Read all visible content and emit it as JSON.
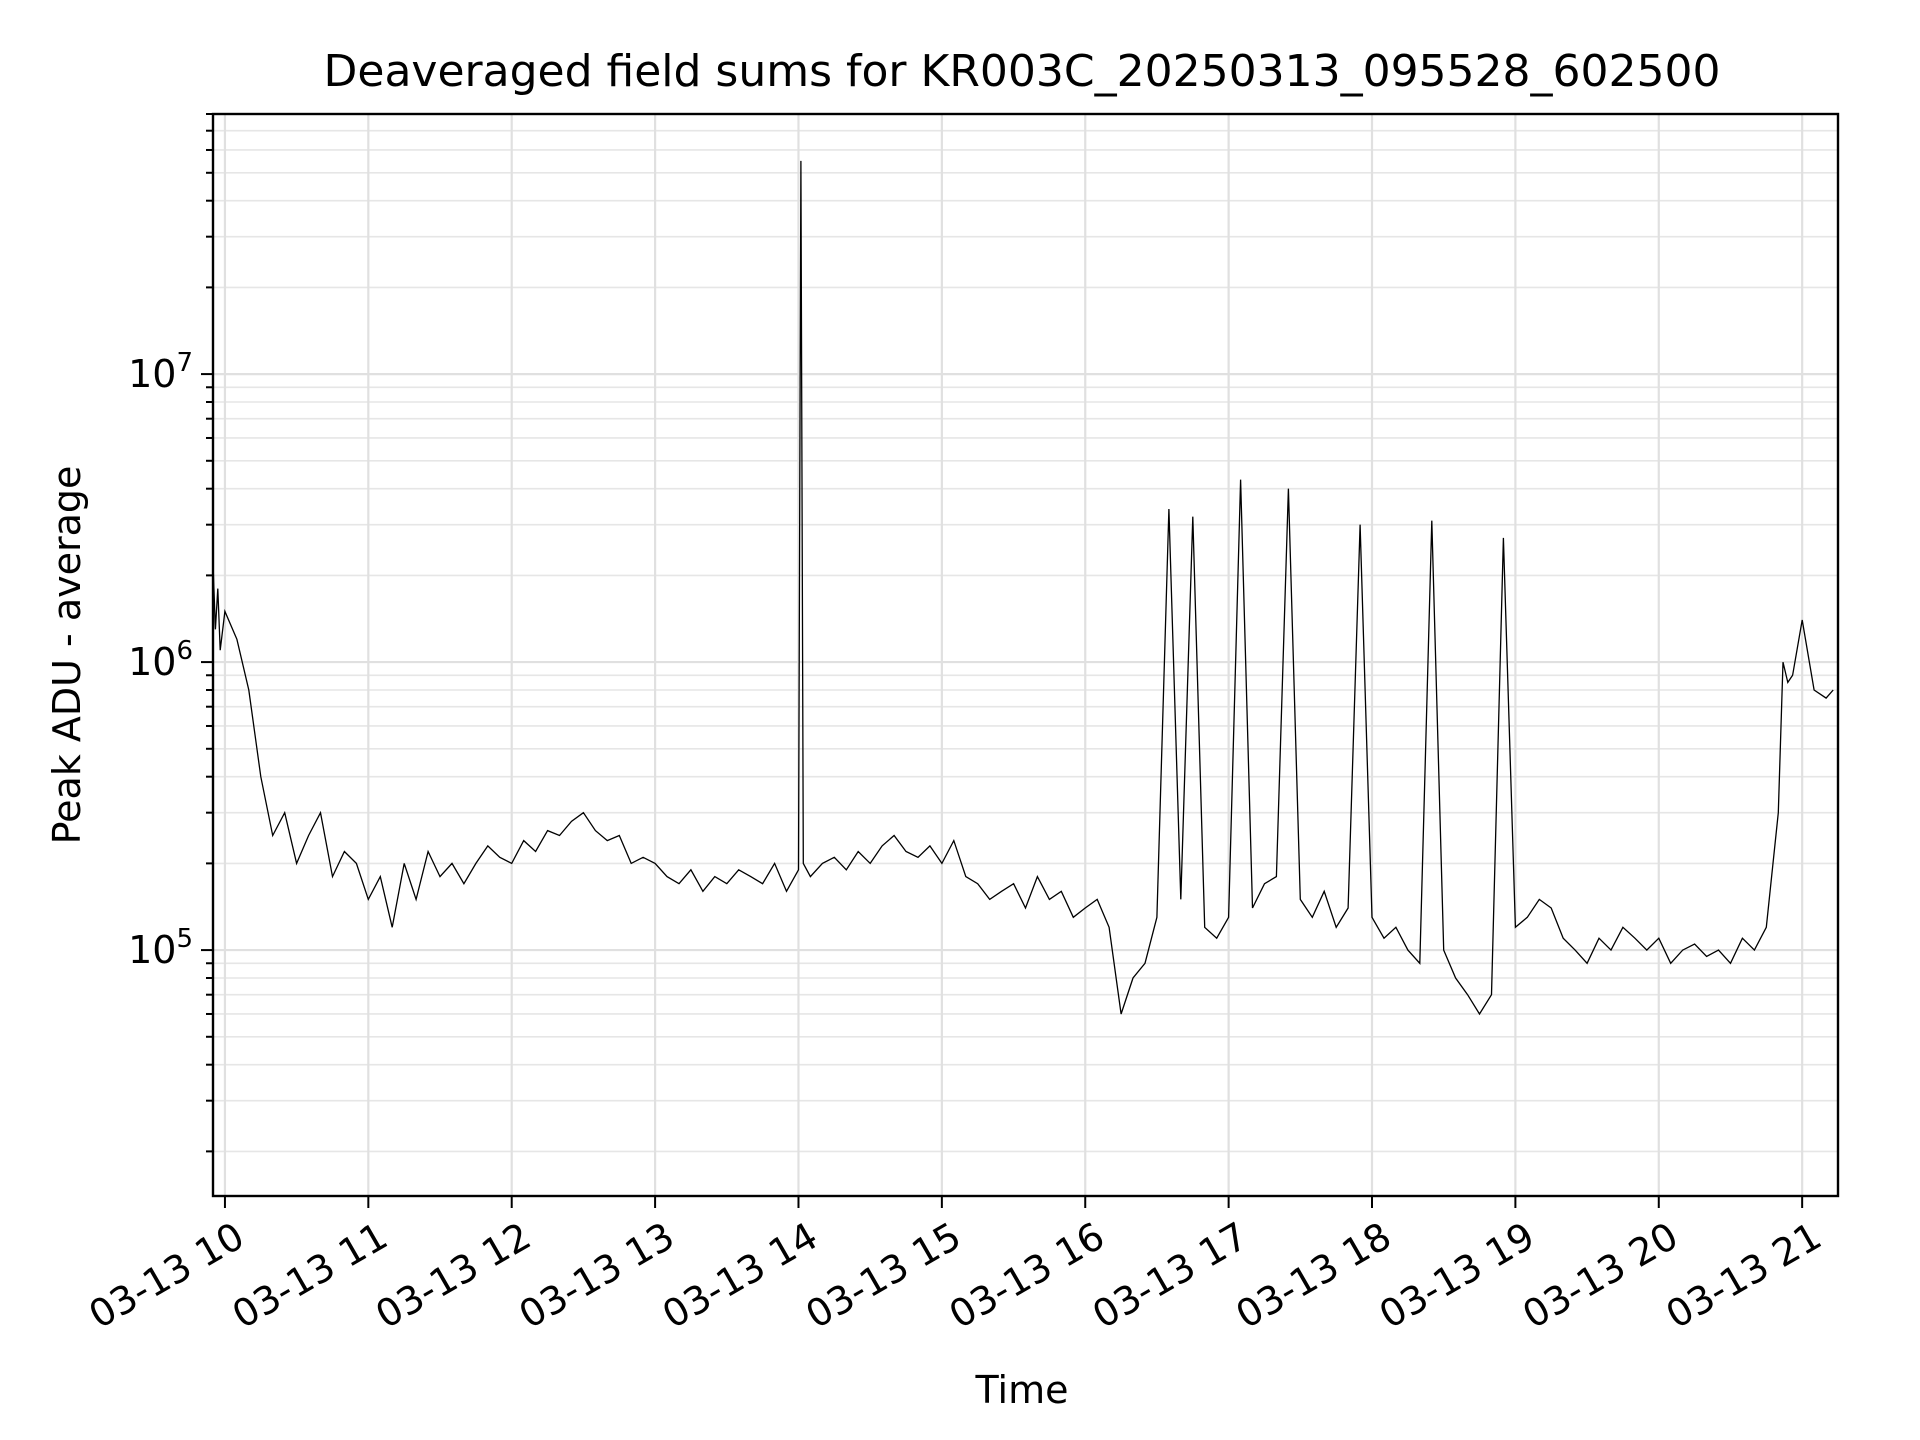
{
  "chart_data": {
    "type": "line",
    "title": "Deaveraged field sums for KR003C_20250313_095528_602500",
    "xlabel": "Time",
    "ylabel": "Peak ADU - average",
    "y_scale": "log",
    "ylim": [
      14000,
      80000000
    ],
    "xlim": [
      "2025-03-13 09:55",
      "2025-03-13 21:15"
    ],
    "x_ticks": [
      {
        "value": "2025-03-13 10:00",
        "label": "03-13 10"
      },
      {
        "value": "2025-03-13 11:00",
        "label": "03-13 11"
      },
      {
        "value": "2025-03-13 12:00",
        "label": "03-13 12"
      },
      {
        "value": "2025-03-13 13:00",
        "label": "03-13 13"
      },
      {
        "value": "2025-03-13 14:00",
        "label": "03-13 14"
      },
      {
        "value": "2025-03-13 15:00",
        "label": "03-13 15"
      },
      {
        "value": "2025-03-13 16:00",
        "label": "03-13 16"
      },
      {
        "value": "2025-03-13 17:00",
        "label": "03-13 17"
      },
      {
        "value": "2025-03-13 18:00",
        "label": "03-13 18"
      },
      {
        "value": "2025-03-13 19:00",
        "label": "03-13 19"
      },
      {
        "value": "2025-03-13 20:00",
        "label": "03-13 20"
      },
      {
        "value": "2025-03-13 21:00",
        "label": "03-13 21"
      }
    ],
    "y_ticks": [
      {
        "value": 100000,
        "base": "10",
        "exponent": "5"
      },
      {
        "value": 1000000,
        "base": "10",
        "exponent": "6"
      },
      {
        "value": 10000000,
        "base": "10",
        "exponent": "7"
      }
    ],
    "grid": true,
    "legend": "none",
    "colors": {
      "line": "#000000",
      "grid": "#e0e0e0",
      "background": "#ffffff"
    },
    "series": [
      {
        "x": [
          "2025-03-13 09:55",
          "2025-03-13 09:56",
          "2025-03-13 09:57",
          "2025-03-13 09:58",
          "2025-03-13 10:00",
          "2025-03-13 10:05",
          "2025-03-13 10:10",
          "2025-03-13 10:15",
          "2025-03-13 10:20",
          "2025-03-13 10:25",
          "2025-03-13 10:30",
          "2025-03-13 10:35",
          "2025-03-13 10:40",
          "2025-03-13 10:45",
          "2025-03-13 10:50",
          "2025-03-13 10:55",
          "2025-03-13 11:00",
          "2025-03-13 11:05",
          "2025-03-13 11:10",
          "2025-03-13 11:15",
          "2025-03-13 11:20",
          "2025-03-13 11:25",
          "2025-03-13 11:30",
          "2025-03-13 11:35",
          "2025-03-13 11:40",
          "2025-03-13 11:45",
          "2025-03-13 11:50",
          "2025-03-13 11:55",
          "2025-03-13 12:00",
          "2025-03-13 12:05",
          "2025-03-13 12:10",
          "2025-03-13 12:15",
          "2025-03-13 12:20",
          "2025-03-13 12:25",
          "2025-03-13 12:30",
          "2025-03-13 12:35",
          "2025-03-13 12:40",
          "2025-03-13 12:45",
          "2025-03-13 12:50",
          "2025-03-13 12:55",
          "2025-03-13 13:00",
          "2025-03-13 13:05",
          "2025-03-13 13:10",
          "2025-03-13 13:15",
          "2025-03-13 13:20",
          "2025-03-13 13:25",
          "2025-03-13 13:30",
          "2025-03-13 13:35",
          "2025-03-13 13:40",
          "2025-03-13 13:45",
          "2025-03-13 13:50",
          "2025-03-13 13:55",
          "2025-03-13 14:00",
          "2025-03-13 14:01",
          "2025-03-13 14:02",
          "2025-03-13 14:05",
          "2025-03-13 14:10",
          "2025-03-13 14:15",
          "2025-03-13 14:20",
          "2025-03-13 14:25",
          "2025-03-13 14:30",
          "2025-03-13 14:35",
          "2025-03-13 14:40",
          "2025-03-13 14:45",
          "2025-03-13 14:50",
          "2025-03-13 14:55",
          "2025-03-13 15:00",
          "2025-03-13 15:05",
          "2025-03-13 15:10",
          "2025-03-13 15:15",
          "2025-03-13 15:20",
          "2025-03-13 15:25",
          "2025-03-13 15:30",
          "2025-03-13 15:35",
          "2025-03-13 15:40",
          "2025-03-13 15:45",
          "2025-03-13 15:50",
          "2025-03-13 15:55",
          "2025-03-13 16:00",
          "2025-03-13 16:05",
          "2025-03-13 16:10",
          "2025-03-13 16:15",
          "2025-03-13 16:20",
          "2025-03-13 16:25",
          "2025-03-13 16:30",
          "2025-03-13 16:35",
          "2025-03-13 16:40",
          "2025-03-13 16:45",
          "2025-03-13 16:50",
          "2025-03-13 16:55",
          "2025-03-13 17:00",
          "2025-03-13 17:05",
          "2025-03-13 17:10",
          "2025-03-13 17:15",
          "2025-03-13 17:20",
          "2025-03-13 17:25",
          "2025-03-13 17:30",
          "2025-03-13 17:35",
          "2025-03-13 17:40",
          "2025-03-13 17:45",
          "2025-03-13 17:50",
          "2025-03-13 17:55",
          "2025-03-13 18:00",
          "2025-03-13 18:05",
          "2025-03-13 18:10",
          "2025-03-13 18:15",
          "2025-03-13 18:20",
          "2025-03-13 18:25",
          "2025-03-13 18:30",
          "2025-03-13 18:35",
          "2025-03-13 18:40",
          "2025-03-13 18:45",
          "2025-03-13 18:50",
          "2025-03-13 18:55",
          "2025-03-13 19:00",
          "2025-03-13 19:05",
          "2025-03-13 19:10",
          "2025-03-13 19:15",
          "2025-03-13 19:20",
          "2025-03-13 19:25",
          "2025-03-13 19:30",
          "2025-03-13 19:35",
          "2025-03-13 19:40",
          "2025-03-13 19:45",
          "2025-03-13 19:50",
          "2025-03-13 19:55",
          "2025-03-13 20:00",
          "2025-03-13 20:05",
          "2025-03-13 20:10",
          "2025-03-13 20:15",
          "2025-03-13 20:20",
          "2025-03-13 20:25",
          "2025-03-13 20:30",
          "2025-03-13 20:35",
          "2025-03-13 20:40",
          "2025-03-13 20:45",
          "2025-03-13 20:50",
          "2025-03-13 20:52",
          "2025-03-13 20:54",
          "2025-03-13 20:56",
          "2025-03-13 21:00",
          "2025-03-13 21:05",
          "2025-03-13 21:10",
          "2025-03-13 21:13"
        ],
        "values": [
          2200000,
          1300000,
          1800000,
          1100000,
          1500000,
          1200000,
          800000,
          400000,
          250000,
          300000,
          200000,
          250000,
          300000,
          180000,
          220000,
          200000,
          150000,
          180000,
          120000,
          200000,
          150000,
          220000,
          180000,
          200000,
          170000,
          200000,
          230000,
          210000,
          200000,
          240000,
          220000,
          260000,
          250000,
          280000,
          300000,
          260000,
          240000,
          250000,
          200000,
          210000,
          200000,
          180000,
          170000,
          190000,
          160000,
          180000,
          170000,
          190000,
          180000,
          170000,
          200000,
          160000,
          190000,
          55000000,
          200000,
          180000,
          200000,
          210000,
          190000,
          220000,
          200000,
          230000,
          250000,
          220000,
          210000,
          230000,
          200000,
          240000,
          180000,
          170000,
          150000,
          160000,
          170000,
          140000,
          180000,
          150000,
          160000,
          130000,
          140000,
          150000,
          120000,
          60000,
          80000,
          90000,
          130000,
          3400000,
          150000,
          3200000,
          120000,
          110000,
          130000,
          4300000,
          140000,
          170000,
          180000,
          4000000,
          150000,
          130000,
          160000,
          120000,
          140000,
          3000000,
          130000,
          110000,
          120000,
          100000,
          90000,
          3100000,
          100000,
          80000,
          70000,
          60000,
          70000,
          2700000,
          120000,
          130000,
          150000,
          140000,
          110000,
          100000,
          90000,
          110000,
          100000,
          120000,
          110000,
          100000,
          110000,
          90000,
          100000,
          105000,
          95000,
          100000,
          90000,
          110000,
          100000,
          120000,
          300000,
          1000000,
          850000,
          900000,
          1400000,
          800000,
          750000,
          800000
        ]
      }
    ]
  }
}
